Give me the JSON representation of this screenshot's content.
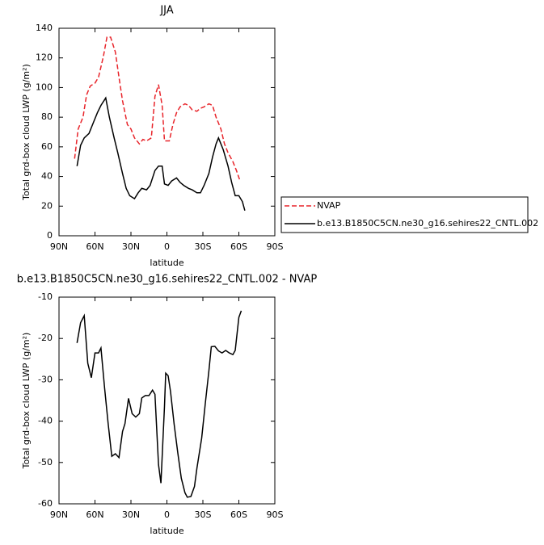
{
  "chart_data": [
    {
      "type": "line",
      "title": "JJA",
      "xlabel": "latitude",
      "ylabel": "Total grd-box cloud LWP (g/m²)",
      "xlim": [
        90,
        -90
      ],
      "xticks": [
        {
          "value": 90,
          "label": "90N"
        },
        {
          "value": 60,
          "label": "60N"
        },
        {
          "value": 30,
          "label": "30N"
        },
        0,
        {
          "value": -30,
          "label": "30S"
        },
        {
          "value": -60,
          "label": "60S"
        },
        {
          "value": -90,
          "label": "90S"
        }
      ],
      "ylim": [
        0,
        140
      ],
      "yticks": [
        0,
        20,
        40,
        60,
        80,
        100,
        120,
        140
      ],
      "legend": "outside-right",
      "series": [
        {
          "name": "NVAP",
          "color": "#e8242a",
          "linestyle": "dashed",
          "x": [
            77,
            74,
            70,
            67,
            64,
            60,
            57,
            53,
            50,
            47,
            43,
            40,
            37,
            33,
            30,
            27,
            23,
            20,
            17,
            13,
            10,
            7,
            4,
            2,
            -2,
            -5,
            -8,
            -11,
            -15,
            -18,
            -21,
            -25,
            -28,
            -31,
            -35,
            -38,
            -41,
            -45,
            -48,
            -51,
            -55,
            -58,
            -61
          ],
          "values": [
            52,
            72,
            80,
            95,
            101,
            103,
            107,
            121,
            134,
            134,
            124,
            107,
            91,
            75,
            72,
            66,
            62,
            65,
            64,
            66,
            94,
            102,
            88,
            64,
            64,
            75,
            83,
            87,
            89,
            88,
            85,
            84,
            86,
            87,
            89,
            88,
            80,
            72,
            62,
            56,
            50,
            44,
            37
          ]
        },
        {
          "name": "b.e13.B1850C5CN.ne30_g16.sehires22_CNTL.002",
          "color": "#000000",
          "linestyle": "solid",
          "x": [
            75,
            72,
            69,
            65,
            61,
            58,
            55,
            51,
            48,
            44,
            41,
            37,
            34,
            31,
            27,
            24,
            21,
            17,
            14,
            10,
            7,
            4,
            2,
            -1,
            -4,
            -8,
            -11,
            -14,
            -18,
            -21,
            -25,
            -28,
            -31,
            -35,
            -38,
            -41,
            -43,
            -47,
            -51,
            -54,
            -57,
            -60,
            -63,
            -65
          ],
          "values": [
            47,
            61,
            66,
            69,
            77,
            83,
            88,
            93,
            80,
            66,
            56,
            42,
            32,
            27,
            25,
            29,
            32,
            31,
            34,
            44,
            47,
            47,
            35,
            34,
            37,
            39,
            36,
            34,
            32,
            31,
            29,
            29,
            34,
            42,
            53,
            62,
            66,
            58,
            47,
            36,
            27,
            27,
            23,
            17
          ]
        }
      ]
    },
    {
      "type": "line",
      "title": "b.e13.B1850C5CN.ne30_g16.sehires22_CNTL.002 - NVAP",
      "xlabel": "latitude",
      "ylabel": "Total grd-box cloud LWP (g/m²)",
      "xlim": [
        90,
        -90
      ],
      "xticks": [
        {
          "value": 90,
          "label": "90N"
        },
        {
          "value": 60,
          "label": "60N"
        },
        {
          "value": 30,
          "label": "30N"
        },
        0,
        {
          "value": -30,
          "label": "30S"
        },
        {
          "value": -60,
          "label": "60S"
        },
        {
          "value": -90,
          "label": "90S"
        }
      ],
      "ylim": [
        -60,
        -10
      ],
      "yticks": [
        -60,
        -50,
        -40,
        -30,
        -20,
        -10
      ],
      "series": [
        {
          "color": "#000000",
          "linestyle": "solid",
          "x": [
            75,
            72,
            69,
            66,
            63,
            60,
            57,
            55,
            52,
            49,
            46,
            43,
            40,
            37,
            35,
            32,
            29,
            26,
            23,
            21,
            18,
            15,
            12,
            10,
            7,
            5,
            2,
            1,
            -1,
            -3,
            -6,
            -9,
            -12,
            -15,
            -17,
            -20,
            -23,
            -25,
            -29,
            -32,
            -35,
            -37,
            -40,
            -43,
            -46,
            -49,
            -52,
            -55,
            -57,
            -60,
            -62
          ],
          "values": [
            -21.1,
            -16.2,
            -14.5,
            -26,
            -29.5,
            -23.5,
            -23.5,
            -22.3,
            -32,
            -40.6,
            -48.5,
            -47.9,
            -48.8,
            -42.5,
            -40.6,
            -34.5,
            -38.2,
            -39,
            -38.2,
            -34.4,
            -33.8,
            -33.8,
            -32.5,
            -33.5,
            -50.5,
            -55,
            -36.4,
            -28.4,
            -29,
            -32.9,
            -40.7,
            -47.6,
            -53.8,
            -57.3,
            -58.4,
            -58.2,
            -55.8,
            -51.4,
            -44.1,
            -35.7,
            -27.9,
            -22,
            -21.9,
            -23,
            -23.5,
            -22.9,
            -23.5,
            -23.9,
            -22.9,
            -14.9,
            -13.3
          ]
        }
      ]
    }
  ]
}
